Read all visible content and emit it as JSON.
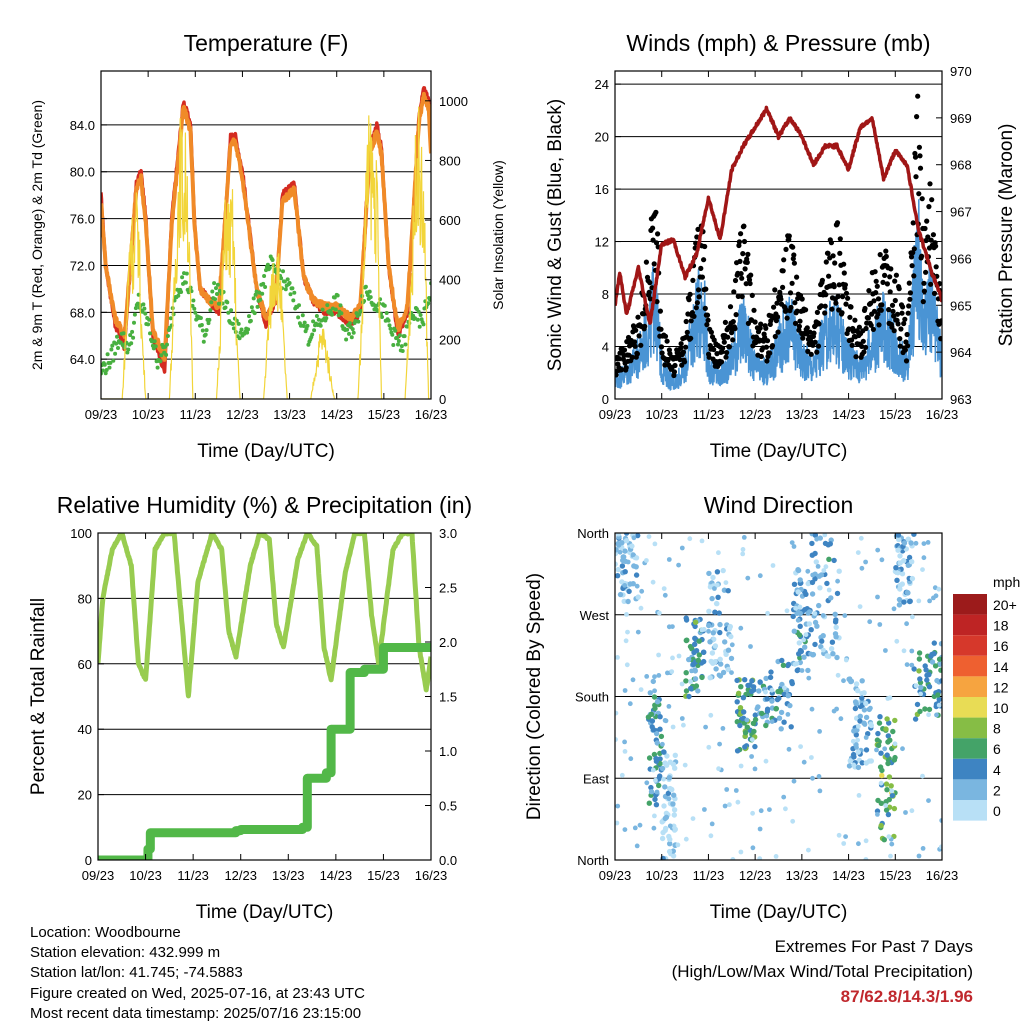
{
  "station": {
    "location": "Location: Woodbourne",
    "elevation": "Station elevation: 432.999 m",
    "latlon": "Station lat/lon: 41.745; -74.5883",
    "created": "Figure created on Wed, 2025-07-16, at 23:43 UTC",
    "recent": "Most recent data timestamp: 2025/07/16 23:15:00"
  },
  "extremes": {
    "title": "Extremes For Past 7 Days",
    "subtitle": "(High/Low/Max Wind/Total Precipitation)",
    "values": "87/62.8/14.3/1.96"
  },
  "colors": {
    "temp2m": "#d42a20",
    "temp9m": "#f08a28",
    "dewpoint": "#48b040",
    "solar": "#f2d53a",
    "wind": "#4a94d4",
    "gust": "#000000",
    "pressure": "#a01616",
    "rh": "#98cc50",
    "precip": "#52b848"
  },
  "chart_data": [
    {
      "type": "line",
      "title": "Temperature (F)",
      "xlabel": "Time (Day/UTC)",
      "ylabel": "2m & 9m T (Red, Orange) & 2m Td (Green)",
      "y2label": "Solar Insolation (Yellow)",
      "x_ticks": [
        "09/23",
        "10/23",
        "11/23",
        "12/23",
        "13/23",
        "14/23",
        "15/23",
        "16/23"
      ],
      "xlim": [
        0,
        7
      ],
      "ylim": [
        60.6,
        88.6
      ],
      "yticks": [
        64.0,
        68.0,
        72.0,
        76.0,
        80.0,
        84.0
      ],
      "y2lim": [
        0,
        1100
      ],
      "y2ticks": [
        0,
        200,
        400,
        600,
        800,
        1000
      ],
      "grid": true,
      "series": [
        {
          "key": "temp2m",
          "axis": "y",
          "x": [
            0,
            0.1,
            0.3,
            0.5,
            0.75,
            0.85,
            0.95,
            1.1,
            1.35,
            1.5,
            1.75,
            1.9,
            1.98,
            2.1,
            2.3,
            2.5,
            2.75,
            2.85,
            3.0,
            3.3,
            3.5,
            3.7,
            3.85,
            4.1,
            4.3,
            4.5,
            4.75,
            4.85,
            5.0,
            5.3,
            5.5,
            5.7,
            5.85,
            5.95,
            6.1,
            6.3,
            6.5,
            6.75,
            6.85,
            6.95,
            7
          ],
          "values": [
            78,
            72,
            67,
            65,
            79,
            80,
            76,
            66,
            63,
            76,
            86,
            84,
            76,
            70,
            69,
            68,
            83,
            83,
            80,
            70,
            67,
            69,
            78,
            79,
            71,
            69,
            68,
            68,
            68,
            67,
            68,
            82,
            84,
            82,
            72,
            66,
            68,
            85,
            87,
            86,
            82
          ]
        },
        {
          "key": "temp9m",
          "axis": "y",
          "x": [
            0,
            0.1,
            0.3,
            0.5,
            0.75,
            0.85,
            0.95,
            1.1,
            1.35,
            1.5,
            1.75,
            1.9,
            1.98,
            2.1,
            2.3,
            2.5,
            2.75,
            2.85,
            3.0,
            3.3,
            3.5,
            3.7,
            3.85,
            4.1,
            4.3,
            4.5,
            4.75,
            4.85,
            5.0,
            5.3,
            5.5,
            5.7,
            5.85,
            5.95,
            6.1,
            6.3,
            6.5,
            6.75,
            6.85,
            6.95,
            7
          ],
          "values": [
            77.5,
            72,
            67.5,
            66,
            78.5,
            79.5,
            75.5,
            66.5,
            64,
            75.5,
            85.5,
            83.5,
            75.5,
            70,
            69,
            68.5,
            82.5,
            82.5,
            79.5,
            70,
            67.5,
            69,
            77.5,
            78.5,
            71,
            69,
            68.5,
            68.5,
            68.5,
            67.5,
            68.5,
            81.5,
            83.5,
            81.5,
            72,
            66.5,
            68.5,
            84.5,
            86.5,
            85.5,
            81.5
          ]
        },
        {
          "key": "dewpoint",
          "axis": "y",
          "x": [
            0,
            0.2,
            0.4,
            0.6,
            0.8,
            1.0,
            1.2,
            1.4,
            1.6,
            1.8,
            2.0,
            2.2,
            2.4,
            2.6,
            2.8,
            3.0,
            3.2,
            3.4,
            3.6,
            3.8,
            4.0,
            4.2,
            4.4,
            4.6,
            4.8,
            5.0,
            5.2,
            5.4,
            5.6,
            5.8,
            6.0,
            6.2,
            6.4,
            6.6,
            6.8,
            7.0
          ],
          "values": [
            63,
            64,
            66,
            65,
            69,
            67,
            64,
            65,
            70,
            71,
            68,
            66,
            70,
            69,
            67,
            66,
            68,
            70,
            72,
            71,
            70,
            68,
            66,
            67,
            68,
            69,
            66,
            67,
            70,
            69,
            68,
            66,
            65,
            68,
            67,
            70
          ]
        },
        {
          "key": "solar",
          "axis": "y2",
          "x": [
            0,
            0.45,
            0.55,
            0.62,
            0.7,
            0.78,
            0.86,
            0.95,
            1.45,
            1.55,
            1.65,
            1.7,
            1.75,
            1.82,
            1.95,
            2.45,
            2.55,
            2.65,
            2.72,
            2.8,
            2.88,
            2.95,
            3.45,
            3.55,
            3.65,
            3.72,
            3.8,
            3.88,
            3.95,
            4.45,
            4.55,
            4.65,
            4.72,
            4.8,
            4.88,
            4.95,
            5.45,
            5.55,
            5.62,
            5.7,
            5.78,
            5.86,
            5.95,
            6.45,
            6.55,
            6.62,
            6.7,
            6.78,
            6.86,
            6.95
          ],
          "values": [
            0,
            0,
            350,
            700,
            600,
            780,
            300,
            0,
            0,
            420,
            900,
            1000,
            850,
            950,
            0,
            0,
            380,
            760,
            680,
            720,
            250,
            0,
            0,
            300,
            520,
            560,
            480,
            220,
            0,
            0,
            120,
            240,
            260,
            180,
            80,
            0,
            0,
            400,
            840,
            1000,
            900,
            780,
            0,
            0,
            380,
            650,
            1060,
            900,
            700,
            0
          ]
        }
      ]
    },
    {
      "type": "line",
      "title": "Winds (mph) & Pressure (mb)",
      "xlabel": "Time (Day/UTC)",
      "ylabel": "Sonic Wind & Gust (Blue, Black)",
      "y2label": "Station Pressure (Maroon)",
      "x_ticks": [
        "09/23",
        "10/23",
        "11/23",
        "12/23",
        "13/23",
        "14/23",
        "15/23",
        "16/23"
      ],
      "xlim": [
        0,
        7
      ],
      "ylim": [
        0,
        25
      ],
      "yticks": [
        0,
        4,
        8,
        12,
        16,
        20,
        24
      ],
      "y2lim": [
        963,
        970
      ],
      "y2ticks": [
        963,
        964,
        965,
        966,
        967,
        968,
        969,
        970
      ],
      "grid": true,
      "series": [
        {
          "key": "wind",
          "axis": "y",
          "x": [
            0,
            0.25,
            0.5,
            0.75,
            0.85,
            1.0,
            1.25,
            1.5,
            1.75,
            1.9,
            2.0,
            2.25,
            2.5,
            2.75,
            3.0,
            3.25,
            3.5,
            3.75,
            4.0,
            4.25,
            4.5,
            4.75,
            5.0,
            5.25,
            5.5,
            5.75,
            6.0,
            6.25,
            6.5,
            6.6,
            6.75,
            7.0
          ],
          "values": [
            2,
            2.5,
            4,
            7,
            10,
            3,
            1.5,
            3,
            8,
            9,
            3,
            2,
            4,
            7,
            3,
            2.5,
            5,
            7,
            4,
            3,
            6,
            7,
            4,
            3,
            5,
            7,
            5,
            3,
            14,
            6,
            9,
            4
          ]
        },
        {
          "key": "gust",
          "axis": "y",
          "x": [
            0,
            0.25,
            0.5,
            0.75,
            0.85,
            1.0,
            1.25,
            1.5,
            1.75,
            1.9,
            2.0,
            2.25,
            2.5,
            2.75,
            3.0,
            3.25,
            3.5,
            3.75,
            4.0,
            4.25,
            4.5,
            4.75,
            5.0,
            5.25,
            5.5,
            5.75,
            6.0,
            6.25,
            6.5,
            6.6,
            6.75,
            7.0
          ],
          "values": [
            3,
            4,
            6,
            12,
            16,
            5,
            3,
            5,
            12,
            16,
            5,
            4,
            7,
            13,
            6,
            5,
            9,
            12,
            7,
            5,
            10,
            13,
            7,
            5,
            9,
            11,
            9,
            5,
            23,
            11,
            16,
            6
          ]
        },
        {
          "key": "pressure",
          "axis": "y2",
          "x": [
            0,
            0.1,
            0.25,
            0.5,
            0.75,
            1.0,
            1.25,
            1.5,
            1.75,
            2.0,
            2.25,
            2.5,
            2.75,
            3.0,
            3.25,
            3.5,
            3.75,
            4.0,
            4.25,
            4.5,
            4.75,
            5.0,
            5.25,
            5.5,
            5.75,
            6.0,
            6.25,
            6.5,
            6.75,
            7.0
          ],
          "values": [
            965,
            965.7,
            964.8,
            965.8,
            964.6,
            966.3,
            966.4,
            965.6,
            966.1,
            967.3,
            966.4,
            967.9,
            968.4,
            968.8,
            969.2,
            968.6,
            969,
            968.6,
            968,
            968.4,
            968.4,
            967.9,
            968.8,
            969,
            967.7,
            968.3,
            968,
            966.6,
            965.8,
            965.1
          ]
        }
      ]
    },
    {
      "type": "line",
      "title": "Relative Humidity (%) & Precipitation (in)",
      "xlabel": "Time (Day/UTC)",
      "ylabel": "Percent & Total Rainfall",
      "x_ticks": [
        "09/23",
        "10/23",
        "11/23",
        "12/23",
        "13/23",
        "14/23",
        "15/23",
        "16/23"
      ],
      "xlim": [
        0,
        7
      ],
      "ylim": [
        0,
        100
      ],
      "yticks": [
        0,
        20,
        40,
        60,
        80,
        100
      ],
      "y2lim": [
        0,
        3.0
      ],
      "y2ticks": [
        "0.0",
        "0.5",
        "1.0",
        "1.5",
        "2.0",
        "2.5",
        "3.0"
      ],
      "grid": true,
      "series": [
        {
          "key": "rh",
          "axis": "y",
          "x": [
            0,
            0.1,
            0.3,
            0.5,
            0.7,
            0.85,
            1.0,
            1.2,
            1.4,
            1.6,
            1.75,
            1.9,
            2.1,
            2.4,
            2.6,
            2.75,
            2.9,
            3.2,
            3.4,
            3.6,
            3.75,
            3.9,
            4.2,
            4.4,
            4.6,
            4.75,
            4.9,
            5.2,
            5.4,
            5.6,
            5.75,
            5.9,
            6.2,
            6.4,
            6.6,
            6.75,
            6.9,
            7.0
          ],
          "values": [
            60,
            80,
            95,
            100,
            90,
            60,
            55,
            95,
            100,
            100,
            75,
            50,
            85,
            100,
            95,
            70,
            62,
            90,
            100,
            98,
            72,
            65,
            92,
            100,
            96,
            65,
            55,
            88,
            100,
            100,
            75,
            60,
            95,
            100,
            100,
            65,
            52,
            62
          ]
        },
        {
          "key": "precip",
          "axis": "y2",
          "x": [
            0,
            0.9,
            1.05,
            1.1,
            2.9,
            3.0,
            4.3,
            4.4,
            4.8,
            4.9,
            5.3,
            5.6,
            5.65,
            5.9,
            6.0,
            7.0
          ],
          "values": [
            0,
            0,
            0.1,
            0.25,
            0.27,
            0.28,
            0.3,
            0.75,
            0.8,
            1.2,
            1.72,
            1.75,
            1.75,
            1.75,
            1.95,
            1.96
          ]
        }
      ]
    },
    {
      "type": "scatter",
      "title": "Wind Direction",
      "xlabel": "Time (Day/UTC)",
      "ylabel": "Direction (Colored By Speed)",
      "x_ticks": [
        "09/23",
        "10/23",
        "11/23",
        "12/23",
        "13/23",
        "14/23",
        "15/23",
        "16/23"
      ],
      "xlim": [
        0,
        7
      ],
      "ylim": [
        0,
        360
      ],
      "y_tick_labels": [
        "North",
        "East",
        "South",
        "West",
        "North"
      ],
      "legend": {
        "title": "mph",
        "labels": [
          "20+",
          "18",
          "16",
          "14",
          "12",
          "10",
          "8",
          "6",
          "4",
          "2",
          "0"
        ],
        "colors": [
          "#9c1b1b",
          "#be2424",
          "#d6382b",
          "#ee6030",
          "#f6a440",
          "#e8dc55",
          "#86bd45",
          "#44a368",
          "#3e84c2",
          "#7ab6e0",
          "#b8e0f6"
        ]
      },
      "clusters": [
        {
          "x": [
            0.0,
            0.5
          ],
          "dir": [
            280,
            360
          ],
          "speed": 3
        },
        {
          "x": [
            0.7,
            1.0
          ],
          "dir": [
            60,
            200
          ],
          "speed": 5
        },
        {
          "x": [
            1.0,
            1.3
          ],
          "dir": [
            0,
            120
          ],
          "speed": 2
        },
        {
          "x": [
            1.5,
            1.9
          ],
          "dir": [
            180,
            270
          ],
          "speed": 6
        },
        {
          "x": [
            2.0,
            2.5
          ],
          "dir": [
            200,
            320
          ],
          "speed": 3
        },
        {
          "x": [
            2.6,
            3.0
          ],
          "dir": [
            120,
            200
          ],
          "speed": 7
        },
        {
          "x": [
            3.0,
            3.8
          ],
          "dir": [
            140,
            220
          ],
          "speed": 5
        },
        {
          "x": [
            3.8,
            4.2
          ],
          "dir": [
            200,
            320
          ],
          "speed": 4
        },
        {
          "x": [
            4.2,
            4.8
          ],
          "dir": [
            220,
            360
          ],
          "speed": 4
        },
        {
          "x": [
            5.0,
            5.5
          ],
          "dir": [
            100,
            200
          ],
          "speed": 3
        },
        {
          "x": [
            5.6,
            6.0
          ],
          "dir": [
            20,
            160
          ],
          "speed": 8
        },
        {
          "x": [
            6.0,
            6.4
          ],
          "dir": [
            280,
            360
          ],
          "speed": 3
        },
        {
          "x": [
            6.4,
            7.0
          ],
          "dir": [
            150,
            240
          ],
          "speed": 6
        }
      ]
    }
  ]
}
